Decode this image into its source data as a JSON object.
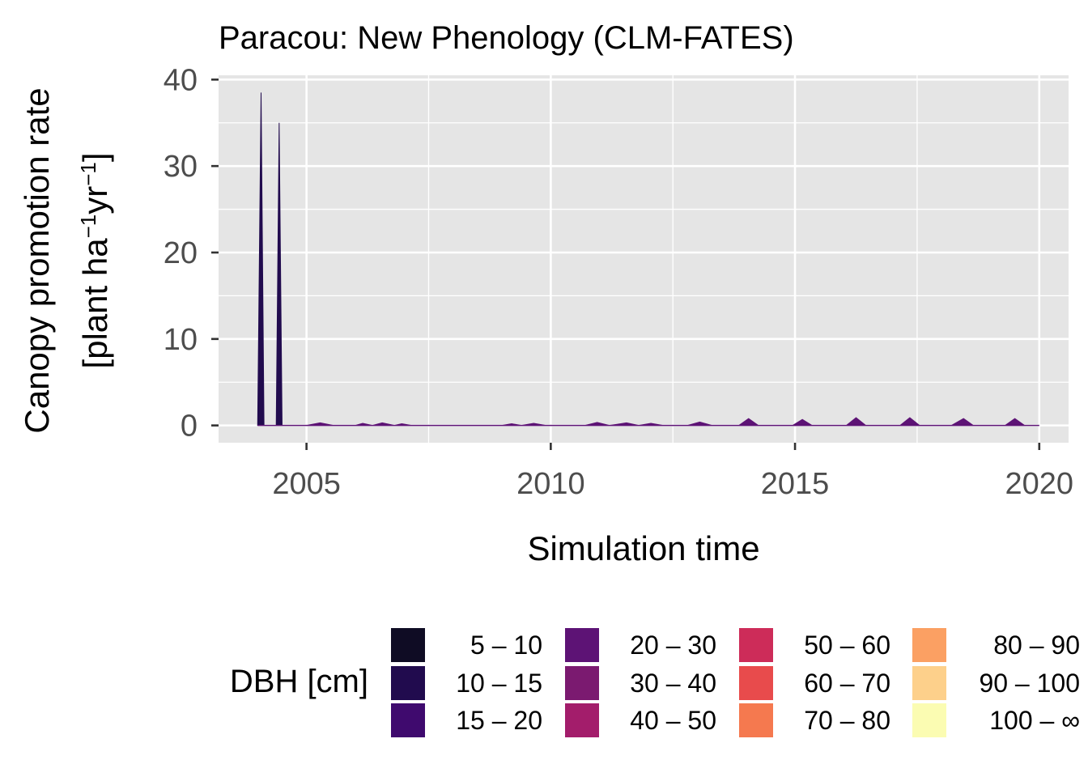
{
  "chart_data": {
    "type": "area",
    "stacked": true,
    "title": "Paracou: New Phenology (CLM-FATES)",
    "xlabel": "Simulation time",
    "ylabel_line1": "Canopy promotion rate",
    "ylabel_unit_parts": [
      "[plant ha",
      "−1",
      "yr",
      "−1",
      "]"
    ],
    "xlim": [
      2003.2,
      2020.6
    ],
    "ylim": [
      -2,
      40.5
    ],
    "xticks": [
      2005,
      2010,
      2015,
      2020
    ],
    "xtick_labels": [
      "2005",
      "2010",
      "2015",
      "2020"
    ],
    "yticks": [
      0,
      10,
      20,
      30,
      40
    ],
    "ytick_labels": [
      "0",
      "10",
      "20",
      "30",
      "40"
    ],
    "grid": true,
    "legend": {
      "title": "DBH [cm]",
      "position": "bottom",
      "items": [
        {
          "label": "5 – 10",
          "color": "#0f0c24"
        },
        {
          "label": "10 – 15",
          "color": "#210b4e"
        },
        {
          "label": "15 – 20",
          "color": "#3f0a6e"
        },
        {
          "label": "20 – 30",
          "color": "#5d1375"
        },
        {
          "label": "30 – 40",
          "color": "#7b1a70"
        },
        {
          "label": "40 – 50",
          "color": "#a31d6b"
        },
        {
          "label": "50 – 60",
          "color": "#cd2c59"
        },
        {
          "label": "60 – 70",
          "color": "#e84b4c"
        },
        {
          "label": "70 – 80",
          "color": "#f5794f"
        },
        {
          "label": "80 – 90",
          "color": "#fba063"
        },
        {
          "label": "90 – 100",
          "color": "#fdd08b"
        },
        {
          "label": "100 – ∞",
          "color": "#fbfcb2"
        }
      ]
    },
    "series": [
      {
        "name": "10 – 15",
        "points": [
          [
            2004.0,
            0
          ],
          [
            2004.07,
            38.5
          ],
          [
            2004.13,
            0
          ],
          [
            2004.38,
            0
          ],
          [
            2004.44,
            35
          ],
          [
            2004.5,
            0
          ]
        ]
      },
      {
        "name": "20 – 30",
        "points": [
          [
            2005.0,
            0
          ],
          [
            2005.28,
            0.3
          ],
          [
            2005.55,
            0
          ],
          [
            2006.0,
            0
          ],
          [
            2006.15,
            0.25
          ],
          [
            2006.35,
            0
          ],
          [
            2006.55,
            0.3
          ],
          [
            2006.8,
            0
          ],
          [
            2006.95,
            0.2
          ],
          [
            2007.15,
            0
          ],
          [
            2009.0,
            0
          ],
          [
            2009.2,
            0.2
          ],
          [
            2009.4,
            0
          ],
          [
            2009.65,
            0.25
          ],
          [
            2009.9,
            0
          ],
          [
            2010.7,
            0
          ],
          [
            2010.95,
            0.35
          ],
          [
            2011.2,
            0
          ],
          [
            2011.55,
            0.3
          ],
          [
            2011.8,
            0
          ],
          [
            2012.05,
            0.25
          ],
          [
            2012.3,
            0
          ],
          [
            2012.8,
            0
          ],
          [
            2013.05,
            0.4
          ],
          [
            2013.3,
            0
          ],
          [
            2013.85,
            0
          ],
          [
            2014.05,
            0.8
          ],
          [
            2014.25,
            0
          ],
          [
            2014.95,
            0
          ],
          [
            2015.15,
            0.7
          ],
          [
            2015.35,
            0
          ],
          [
            2016.05,
            0
          ],
          [
            2016.25,
            0.9
          ],
          [
            2016.45,
            0
          ],
          [
            2017.15,
            0
          ],
          [
            2017.35,
            0.9
          ],
          [
            2017.55,
            0
          ],
          [
            2018.2,
            0
          ],
          [
            2018.45,
            0.8
          ],
          [
            2018.65,
            0
          ],
          [
            2019.3,
            0
          ],
          [
            2019.5,
            0.8
          ],
          [
            2019.7,
            0
          ]
        ]
      }
    ]
  }
}
